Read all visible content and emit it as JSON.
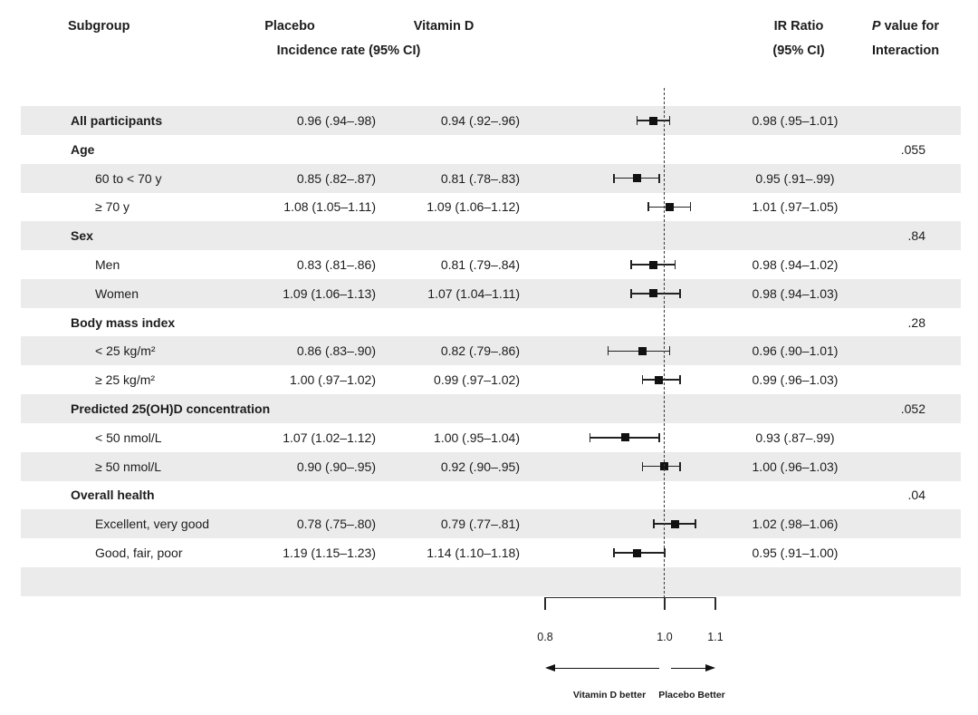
{
  "header": {
    "col_subgroup": "Subgroup",
    "col_placebo": "Placebo",
    "col_vitamin_d": "Vitamin D",
    "incidence_label": "Incidence rate (95% CI)",
    "col_ir_line1": "IR Ratio",
    "col_ir_line2": "(95% CI)",
    "col_p_italic": "P",
    "col_p_rest": " value for",
    "col_p_line2": "Interaction"
  },
  "colors": {
    "row_band": "#ebebeb",
    "text": "#1c1c1c",
    "marker": "#111111"
  },
  "chart_data": {
    "type": "forest",
    "title": "",
    "axis": {
      "scale": "log",
      "min": 0.8,
      "max": 1.1,
      "ticks": [
        "0.8",
        "1.0",
        "1.1"
      ],
      "tick_values": [
        0.8,
        1.0,
        1.1
      ],
      "reference": 1.0,
      "grid": false
    },
    "arrows": {
      "left_label": "Vitamin D better",
      "right_label": "Placebo Better"
    },
    "rows": [
      {
        "label": "All participants",
        "bold": true,
        "indent": false,
        "placebo": "0.96 (.94–.98)",
        "vitamin_d": "0.94 (.92–.96)",
        "ir": 0.98,
        "lo": 0.95,
        "hi": 1.01,
        "ir_text": "0.98 (.95–1.01)",
        "p": ""
      },
      {
        "label": "Age",
        "bold": true,
        "indent": false,
        "placebo": "",
        "vitamin_d": "",
        "ir": null,
        "lo": null,
        "hi": null,
        "ir_text": "",
        "p": ".055"
      },
      {
        "label": "60 to < 70 y",
        "bold": false,
        "indent": true,
        "placebo": "0.85 (.82–.87)",
        "vitamin_d": "0.81 (.78–.83)",
        "ir": 0.95,
        "lo": 0.91,
        "hi": 0.99,
        "ir_text": "0.95 (.91–.99)",
        "p": ""
      },
      {
        "label": "≥ 70 y",
        "bold": false,
        "indent": true,
        "placebo": "1.08 (1.05–1.11)",
        "vitamin_d": "1.09 (1.06–1.12)",
        "ir": 1.01,
        "lo": 0.97,
        "hi": 1.05,
        "ir_text": "1.01 (.97–1.05)",
        "p": ""
      },
      {
        "label": "Sex",
        "bold": true,
        "indent": false,
        "placebo": "",
        "vitamin_d": "",
        "ir": null,
        "lo": null,
        "hi": null,
        "ir_text": "",
        "p": ".84"
      },
      {
        "label": "Men",
        "bold": false,
        "indent": true,
        "placebo": "0.83 (.81–.86)",
        "vitamin_d": "0.81 (.79–.84)",
        "ir": 0.98,
        "lo": 0.94,
        "hi": 1.02,
        "ir_text": "0.98 (.94–1.02)",
        "p": ""
      },
      {
        "label": "Women",
        "bold": false,
        "indent": true,
        "placebo": "1.09 (1.06–1.13)",
        "vitamin_d": "1.07 (1.04–1.11)",
        "ir": 0.98,
        "lo": 0.94,
        "hi": 1.03,
        "ir_text": "0.98 (.94–1.03)",
        "p": ""
      },
      {
        "label": "Body mass index",
        "bold": true,
        "indent": false,
        "placebo": "",
        "vitamin_d": "",
        "ir": null,
        "lo": null,
        "hi": null,
        "ir_text": "",
        "p": ".28"
      },
      {
        "label": "< 25 kg/m²",
        "bold": false,
        "indent": true,
        "placebo": "0.86 (.83–.90)",
        "vitamin_d": "0.82 (.79–.86)",
        "ir": 0.96,
        "lo": 0.9,
        "hi": 1.01,
        "ir_text": "0.96 (.90–1.01)",
        "p": ""
      },
      {
        "label": "≥ 25 kg/m²",
        "bold": false,
        "indent": true,
        "placebo": "1.00 (.97–1.02)",
        "vitamin_d": "0.99 (.97–1.02)",
        "ir": 0.99,
        "lo": 0.96,
        "hi": 1.03,
        "ir_text": "0.99 (.96–1.03)",
        "p": ""
      },
      {
        "label": "Predicted 25(OH)D concentration",
        "bold": true,
        "indent": false,
        "placebo": "",
        "vitamin_d": "",
        "ir": null,
        "lo": null,
        "hi": null,
        "ir_text": "",
        "p": ".052"
      },
      {
        "label": "< 50 nmol/L",
        "bold": false,
        "indent": true,
        "placebo": "1.07 (1.02–1.12)",
        "vitamin_d": "1.00 (.95–1.04)",
        "ir": 0.93,
        "lo": 0.87,
        "hi": 0.99,
        "ir_text": "0.93 (.87–.99)",
        "p": ""
      },
      {
        "label": "≥ 50 nmol/L",
        "bold": false,
        "indent": true,
        "placebo": "0.90 (.90–.95)",
        "vitamin_d": "0.92 (.90–.95)",
        "ir": 1.0,
        "lo": 0.96,
        "hi": 1.03,
        "ir_text": "1.00 (.96–1.03)",
        "p": ""
      },
      {
        "label": "Overall health",
        "bold": true,
        "indent": false,
        "placebo": "",
        "vitamin_d": "",
        "ir": null,
        "lo": null,
        "hi": null,
        "ir_text": "",
        "p": ".04"
      },
      {
        "label": "Excellent, very good",
        "bold": false,
        "indent": true,
        "placebo": "0.78 (.75–.80)",
        "vitamin_d": "0.79 (.77–.81)",
        "ir": 1.02,
        "lo": 0.98,
        "hi": 1.06,
        "ir_text": "1.02 (.98–1.06)",
        "p": ""
      },
      {
        "label": "Good, fair, poor",
        "bold": false,
        "indent": true,
        "placebo": "1.19 (1.15–1.23)",
        "vitamin_d": "1.14 (1.10–1.18)",
        "ir": 0.95,
        "lo": 0.91,
        "hi": 1.0,
        "ir_text": "0.95 (.91–1.00)",
        "p": ""
      },
      {
        "label": "",
        "bold": false,
        "indent": false,
        "placebo": "",
        "vitamin_d": "",
        "ir": null,
        "lo": null,
        "hi": null,
        "ir_text": "",
        "p": "",
        "empty": true
      }
    ]
  }
}
